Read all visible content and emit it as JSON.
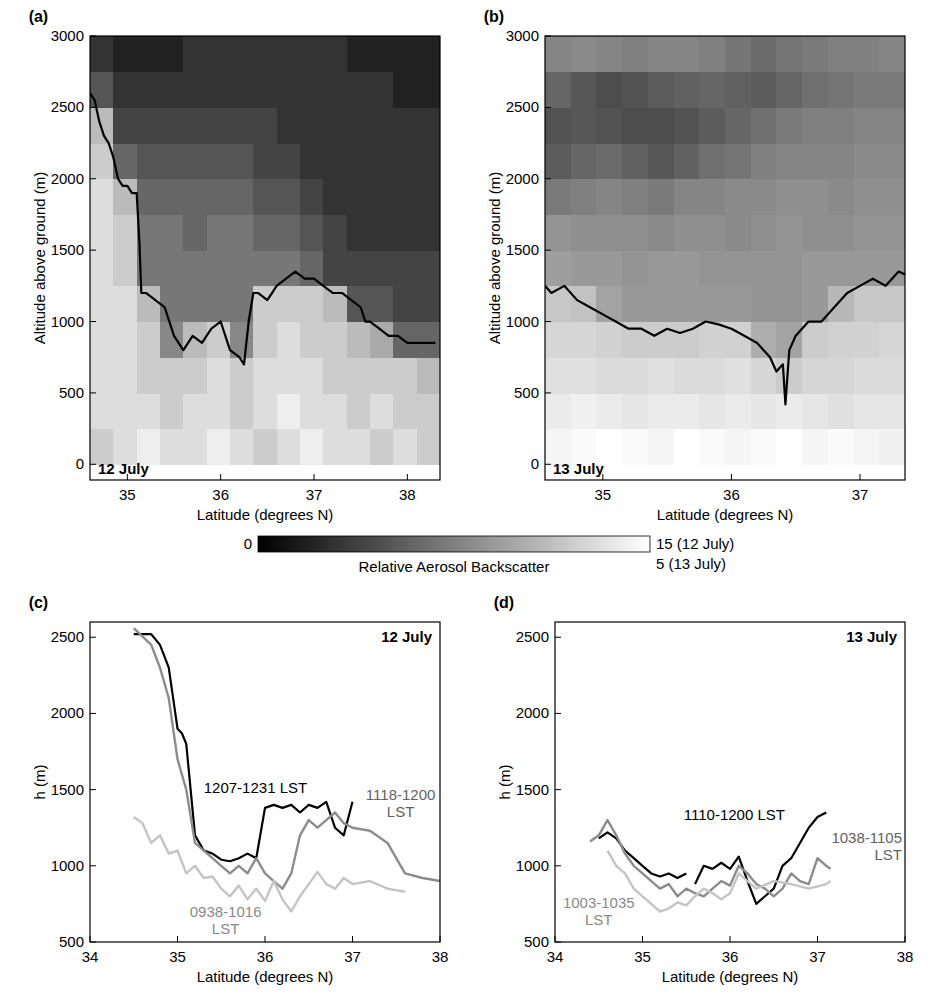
{
  "chart_data": [
    {
      "type": "heatmap",
      "panel_label": "(a)",
      "annotation": "12 July",
      "xlabel": "Latitude (degrees N)",
      "ylabel": "Altitude above ground (m)",
      "xlim": [
        34.6,
        38.35
      ],
      "xticks": [
        35,
        36,
        37,
        38
      ],
      "ylim": [
        -110,
        3000
      ],
      "yticks": [
        0,
        500,
        1000,
        1500,
        2000,
        2500,
        3000
      ],
      "grid": false,
      "x_edges": [
        34.6,
        34.85,
        35.1,
        35.35,
        35.6,
        35.85,
        36.1,
        36.35,
        36.6,
        36.85,
        37.1,
        37.35,
        37.6,
        37.85,
        38.1,
        38.35
      ],
      "y_edges": [
        0,
        250,
        500,
        750,
        1000,
        1250,
        1500,
        1750,
        2000,
        2250,
        2500,
        2750,
        3000
      ],
      "cells": [
        [
          12,
          13,
          14,
          13,
          13,
          14,
          13,
          12,
          13,
          14,
          13,
          13,
          12,
          13,
          12
        ],
        [
          13,
          13,
          13,
          12,
          13,
          13,
          12,
          13,
          14,
          13,
          13,
          12,
          13,
          12,
          12
        ],
        [
          13,
          13,
          12,
          12,
          12,
          13,
          12,
          13,
          13,
          13,
          12,
          12,
          12,
          12,
          11
        ],
        [
          13,
          13,
          12,
          8,
          11,
          12,
          8,
          12,
          13,
          12,
          12,
          11,
          10,
          6,
          6
        ],
        [
          13,
          13,
          11,
          7,
          7,
          7,
          7,
          12,
          12,
          12,
          11,
          5,
          5,
          4,
          4
        ],
        [
          13,
          12,
          7,
          7,
          7,
          7,
          7,
          7,
          7,
          6,
          4,
          4,
          4,
          4,
          4
        ],
        [
          13,
          12,
          7,
          7,
          6,
          7,
          7,
          6,
          6,
          5,
          4,
          3,
          3,
          3,
          3
        ],
        [
          13,
          11,
          6,
          6,
          6,
          6,
          6,
          5,
          5,
          4,
          3,
          3,
          3,
          3,
          3
        ],
        [
          12,
          6,
          5,
          5,
          5,
          5,
          5,
          4,
          4,
          3,
          3,
          3,
          3,
          3,
          3
        ],
        [
          11,
          4,
          4,
          4,
          4,
          4,
          4,
          4,
          3,
          3,
          3,
          3,
          3,
          3,
          3
        ],
        [
          5,
          3,
          3,
          3,
          3,
          3,
          3,
          3,
          3,
          3,
          3,
          3,
          3,
          2,
          2
        ],
        [
          3,
          2,
          2,
          2,
          3,
          3,
          3,
          3,
          3,
          3,
          3,
          2,
          2,
          2,
          2
        ]
      ],
      "color_range": [
        0,
        15
      ],
      "color_ticks": [
        0,
        {
          "value": 15,
          "label": "15 (12 July)"
        }
      ],
      "series": [
        {
          "color": "#000000",
          "x": [
            34.6,
            34.65,
            34.7,
            34.75,
            34.8,
            34.85,
            34.9,
            34.95,
            35.0,
            35.05,
            35.1,
            35.13,
            35.15,
            35.2,
            35.3,
            35.4,
            35.5,
            35.6,
            35.7,
            35.8,
            35.9,
            36.0,
            36.1,
            36.2,
            36.25,
            36.3,
            36.35,
            36.4,
            36.5,
            36.6,
            36.7,
            36.8,
            36.9,
            37.0,
            37.1,
            37.2,
            37.3,
            37.4,
            37.5,
            37.55,
            37.6,
            37.7,
            37.8,
            37.9,
            38.0,
            38.1,
            38.2,
            38.3
          ],
          "values": [
            2600,
            2550,
            2400,
            2300,
            2250,
            2150,
            2000,
            1950,
            1950,
            1900,
            1900,
            1550,
            1200,
            1200,
            1150,
            1100,
            900,
            800,
            900,
            850,
            950,
            1000,
            800,
            750,
            700,
            1000,
            1200,
            1200,
            1150,
            1250,
            1300,
            1350,
            1300,
            1300,
            1250,
            1200,
            1200,
            1150,
            1100,
            1000,
            1000,
            950,
            900,
            900,
            850,
            850,
            850,
            850
          ]
        }
      ]
    },
    {
      "type": "heatmap",
      "panel_label": "(b)",
      "annotation": "13 July",
      "xlabel": "Latitude (degrees N)",
      "ylabel": "Altitude above ground (m)",
      "xlim": [
        34.55,
        37.35
      ],
      "xticks": [
        35,
        36,
        37
      ],
      "ylim": [
        -110,
        3000
      ],
      "yticks": [
        0,
        500,
        1000,
        1500,
        2000,
        2500,
        3000
      ],
      "grid": false,
      "x_edges": [
        34.55,
        34.75,
        34.95,
        35.15,
        35.35,
        35.55,
        35.75,
        35.95,
        36.15,
        36.35,
        36.55,
        36.75,
        36.95,
        37.15,
        37.35
      ],
      "y_edges": [
        0,
        250,
        500,
        750,
        1000,
        1250,
        1500,
        1750,
        2000,
        2250,
        2500,
        2750,
        3000
      ],
      "cells": [
        [
          4.8,
          4.9,
          5,
          4.9,
          4.8,
          5,
          4.9,
          4.8,
          4.9,
          5,
          4.8,
          4.9,
          4.8,
          4.7
        ],
        [
          4.6,
          4.7,
          4.6,
          4.5,
          4.6,
          4.6,
          4.5,
          4.6,
          4.5,
          4.6,
          4.5,
          4.4,
          4.5,
          4.5
        ],
        [
          4.4,
          4.4,
          4.3,
          4.3,
          4.4,
          4.3,
          4.3,
          4.4,
          4.2,
          4.0,
          4.2,
          4.2,
          4.3,
          4.3
        ],
        [
          4.2,
          4.2,
          4.1,
          4.0,
          4.0,
          4.0,
          4.1,
          4.1,
          3.4,
          3.2,
          4.0,
          4.1,
          4.1,
          4.2
        ],
        [
          3.9,
          3.8,
          3.2,
          3.0,
          3.0,
          3.0,
          3.0,
          3.0,
          2.9,
          2.9,
          3.0,
          3.6,
          3.9,
          3.9
        ],
        [
          3.1,
          3.0,
          3.0,
          2.9,
          3.0,
          3.0,
          2.9,
          2.9,
          2.9,
          2.9,
          3.0,
          3.0,
          3.0,
          3.0
        ],
        [
          2.9,
          2.8,
          2.8,
          2.8,
          2.7,
          2.8,
          2.8,
          2.7,
          2.8,
          2.9,
          2.8,
          2.8,
          2.9,
          2.9
        ],
        [
          2.4,
          2.5,
          2.6,
          2.5,
          2.4,
          2.6,
          2.6,
          2.7,
          2.7,
          2.8,
          2.8,
          2.7,
          2.8,
          2.8
        ],
        [
          1.8,
          2.0,
          2.1,
          1.9,
          1.7,
          1.9,
          2.2,
          2.3,
          2.5,
          2.6,
          2.6,
          2.6,
          2.7,
          2.7
        ],
        [
          1.6,
          1.7,
          1.6,
          1.5,
          1.5,
          1.6,
          1.8,
          2.0,
          2.2,
          2.4,
          2.5,
          2.5,
          2.6,
          2.6
        ],
        [
          2.0,
          1.7,
          1.5,
          1.6,
          1.8,
          1.9,
          2.0,
          1.9,
          1.8,
          2.0,
          2.2,
          2.3,
          2.4,
          2.4
        ],
        [
          2.6,
          2.7,
          2.6,
          2.5,
          2.6,
          2.6,
          2.5,
          2.3,
          2.1,
          2.3,
          2.4,
          2.5,
          2.5,
          2.6
        ]
      ],
      "color_range": [
        0,
        5
      ],
      "color_ticks": [
        {
          "value": 5,
          "label": "5 (13 July)"
        }
      ],
      "series": [
        {
          "color": "#000000",
          "x": [
            34.55,
            34.6,
            34.7,
            34.8,
            34.9,
            35.0,
            35.1,
            35.2,
            35.3,
            35.4,
            35.5,
            35.6,
            35.7,
            35.8,
            35.9,
            36.0,
            36.1,
            36.2,
            36.3,
            36.35,
            36.4,
            36.42,
            36.45,
            36.5,
            36.6,
            36.7,
            36.8,
            36.9,
            37.0,
            37.1,
            37.2,
            37.3,
            37.35
          ],
          "values": [
            1250,
            1200,
            1250,
            1150,
            1100,
            1050,
            1000,
            950,
            950,
            900,
            950,
            920,
            950,
            1000,
            980,
            950,
            900,
            850,
            750,
            650,
            700,
            420,
            800,
            900,
            1000,
            1000,
            1100,
            1200,
            1250,
            1300,
            1250,
            1350,
            1330
          ]
        }
      ]
    },
    {
      "type": "line",
      "panel_label": "(c)",
      "annotation": "12 July",
      "xlabel": "Latitude (degrees N)",
      "ylabel": "h (m)",
      "xlim": [
        34,
        38
      ],
      "xticks": [
        34,
        35,
        36,
        37,
        38
      ],
      "ylim": [
        500,
        2600
      ],
      "yticks": [
        500,
        1000,
        1500,
        2000,
        2500
      ],
      "grid": false,
      "series": [
        {
          "name": "1207-1231 LST",
          "color": "#000000",
          "x": [
            34.5,
            34.7,
            34.8,
            34.9,
            35.0,
            35.05,
            35.1,
            35.15,
            35.2,
            35.3,
            35.4,
            35.5,
            35.6,
            35.7,
            35.8,
            35.9,
            36.0,
            36.1,
            36.2,
            36.3,
            36.4,
            36.5,
            36.6,
            36.7,
            36.8,
            36.9,
            37.0
          ],
          "values": [
            2520,
            2520,
            2450,
            2300,
            1900,
            1870,
            1800,
            1500,
            1200,
            1100,
            1080,
            1040,
            1030,
            1050,
            1080,
            1050,
            1380,
            1400,
            1380,
            1400,
            1350,
            1400,
            1380,
            1420,
            1250,
            1200,
            1420
          ]
        },
        {
          "name": "1118-1200 LST",
          "color": "#8c8c8c",
          "x": [
            34.5,
            34.7,
            34.8,
            34.9,
            35.0,
            35.1,
            35.2,
            35.3,
            35.4,
            35.5,
            35.6,
            35.7,
            35.8,
            35.9,
            36.0,
            36.1,
            36.2,
            36.3,
            36.4,
            36.5,
            36.6,
            36.7,
            36.8,
            36.9,
            37.0,
            37.2,
            37.4,
            37.5,
            37.6,
            37.8,
            38.0
          ],
          "values": [
            2560,
            2450,
            2300,
            2100,
            1700,
            1500,
            1150,
            1100,
            1050,
            1000,
            950,
            1000,
            950,
            1050,
            950,
            900,
            850,
            950,
            1200,
            1300,
            1250,
            1300,
            1350,
            1280,
            1250,
            1230,
            1150,
            1050,
            950,
            920,
            900
          ]
        },
        {
          "name": "0938-1016 LST",
          "color": "#c4c4c4",
          "x": [
            34.5,
            34.6,
            34.7,
            34.8,
            34.9,
            35.0,
            35.1,
            35.2,
            35.3,
            35.4,
            35.5,
            35.6,
            35.7,
            35.8,
            35.9,
            36.0,
            36.1,
            36.2,
            36.3,
            36.4,
            36.5,
            36.6,
            36.7,
            36.8,
            36.9,
            37.0,
            37.2,
            37.4,
            37.6
          ],
          "values": [
            1320,
            1280,
            1150,
            1200,
            1080,
            1100,
            950,
            1000,
            920,
            930,
            850,
            800,
            870,
            780,
            850,
            770,
            900,
            780,
            700,
            800,
            880,
            960,
            880,
            850,
            920,
            880,
            900,
            850,
            830
          ]
        }
      ]
    },
    {
      "type": "line",
      "panel_label": "(d)",
      "annotation": "13 July",
      "xlabel": "Latitude (degrees N)",
      "ylabel": "h (m)",
      "xlim": [
        34,
        38
      ],
      "xticks": [
        34,
        35,
        36,
        37,
        38
      ],
      "ylim": [
        500,
        2600
      ],
      "yticks": [
        500,
        1000,
        1500,
        2000,
        2500
      ],
      "grid": false,
      "series": [
        {
          "name": "1110-1200 LST",
          "color": "#000000",
          "x": [
            34.5,
            34.6,
            34.7,
            34.8,
            34.9,
            35.0,
            35.1,
            35.2,
            35.3,
            35.4,
            35.5,
            35.55,
            35.6,
            35.7,
            35.8,
            35.9,
            36.0,
            36.1,
            36.2,
            36.3,
            36.4,
            36.5,
            36.6,
            36.7,
            36.8,
            36.9,
            37.0,
            37.1
          ],
          "values": [
            1180,
            1220,
            1180,
            1100,
            1050,
            1000,
            950,
            930,
            950,
            920,
            950,
            null,
            880,
            1000,
            980,
            1020,
            980,
            1060,
            900,
            750,
            800,
            850,
            1000,
            1050,
            1150,
            1250,
            1320,
            1350
          ]
        },
        {
          "name": "1038-1105 LST",
          "color": "#8c8c8c",
          "x": [
            34.4,
            34.5,
            34.6,
            34.7,
            34.8,
            34.9,
            35.0,
            35.1,
            35.2,
            35.3,
            35.4,
            35.5,
            35.6,
            35.7,
            35.8,
            35.9,
            36.0,
            36.1,
            36.2,
            36.3,
            36.4,
            36.5,
            36.6,
            36.7,
            36.8,
            36.9,
            37.0,
            37.1,
            37.15
          ],
          "values": [
            1160,
            1200,
            1300,
            1200,
            1080,
            1000,
            950,
            900,
            850,
            880,
            800,
            850,
            820,
            800,
            850,
            900,
            870,
            1000,
            950,
            880,
            850,
            800,
            850,
            950,
            900,
            880,
            1050,
            1000,
            980
          ]
        },
        {
          "name": "1003-1035 LST",
          "color": "#c4c4c4",
          "x": [
            34.6,
            34.7,
            34.8,
            34.9,
            35.0,
            35.1,
            35.2,
            35.3,
            35.4,
            35.5,
            35.6,
            35.7,
            35.8,
            35.9,
            36.0,
            36.1,
            36.2,
            36.3,
            36.5,
            36.7,
            36.9,
            37.1,
            37.15
          ],
          "values": [
            1100,
            1000,
            950,
            850,
            800,
            750,
            700,
            720,
            760,
            740,
            800,
            850,
            820,
            780,
            820,
            950,
            900,
            850,
            900,
            880,
            850,
            880,
            900
          ]
        }
      ]
    }
  ],
  "colorbar": {
    "label": "Relative Aerosol Backscatter"
  }
}
